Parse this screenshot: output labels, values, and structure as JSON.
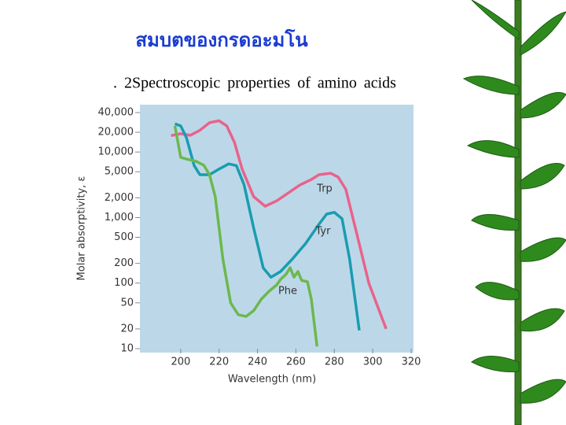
{
  "chart_data": {
    "type": "line",
    "title": "สมบตของกรดอะมโน",
    "subtitle": ". 2Spectroscopic properties of amino acids",
    "x_label": "Wavelength (nm)",
    "y_label": "Molar absorptivity, ε",
    "ylog": true,
    "xlim": [
      180,
      320
    ],
    "ylim": [
      10,
      40000
    ],
    "xticks": [
      200,
      220,
      240,
      260,
      280,
      300,
      320
    ],
    "yticks": [
      10,
      20,
      50,
      100,
      200,
      500,
      {
        "value": 1000,
        "label": "1,000"
      },
      {
        "value": 2000,
        "label": "2,000"
      },
      {
        "value": 5000,
        "label": "5,000"
      },
      {
        "value": 10000,
        "label": "10,000"
      },
      {
        "value": 20000,
        "label": "20,000"
      },
      {
        "value": 40000,
        "label": "40,000"
      }
    ],
    "annotations": [
      "Trp",
      "Tyr",
      "Phe"
    ],
    "series": [
      {
        "name": "Trp",
        "color": "#e8638c",
        "x": [
          195,
          200,
          205,
          210,
          215,
          220,
          224,
          228,
          232,
          238,
          244,
          250,
          256,
          262,
          268,
          272,
          278,
          282,
          286,
          292,
          298,
          307
        ],
        "values": [
          17800,
          19000,
          18000,
          21500,
          28000,
          30000,
          25000,
          14000,
          5500,
          2080,
          1490,
          1800,
          2370,
          3130,
          3800,
          4500,
          4750,
          4150,
          2700,
          520,
          99,
          20
        ]
      },
      {
        "name": "Tyr",
        "color": "#1a9cb0",
        "x": [
          197,
          200,
          203,
          207,
          210,
          215,
          220,
          225,
          229,
          233,
          238,
          243,
          247,
          252,
          258,
          265,
          272,
          276,
          280,
          284,
          288,
          293
        ],
        "values": [
          27000,
          25000,
          16500,
          6200,
          4500,
          4500,
          5500,
          6600,
          6200,
          3150,
          690,
          170,
          123,
          150,
          230,
          400,
          790,
          1130,
          1200,
          960,
          230,
          19
        ]
      },
      {
        "name": "Phe",
        "color": "#6cb84e",
        "x": [
          197,
          200,
          203,
          208,
          212,
          215,
          218,
          222,
          226,
          230,
          234,
          238,
          242,
          246,
          250,
          252,
          255,
          257,
          259,
          261,
          263,
          266,
          268,
          271
        ],
        "values": [
          25000,
          8300,
          7800,
          7200,
          6300,
          4500,
          2080,
          230,
          50,
          33,
          31,
          38,
          57,
          75,
          94,
          114,
          138,
          172,
          123,
          150,
          110,
          105,
          57,
          10.8
        ]
      }
    ]
  }
}
